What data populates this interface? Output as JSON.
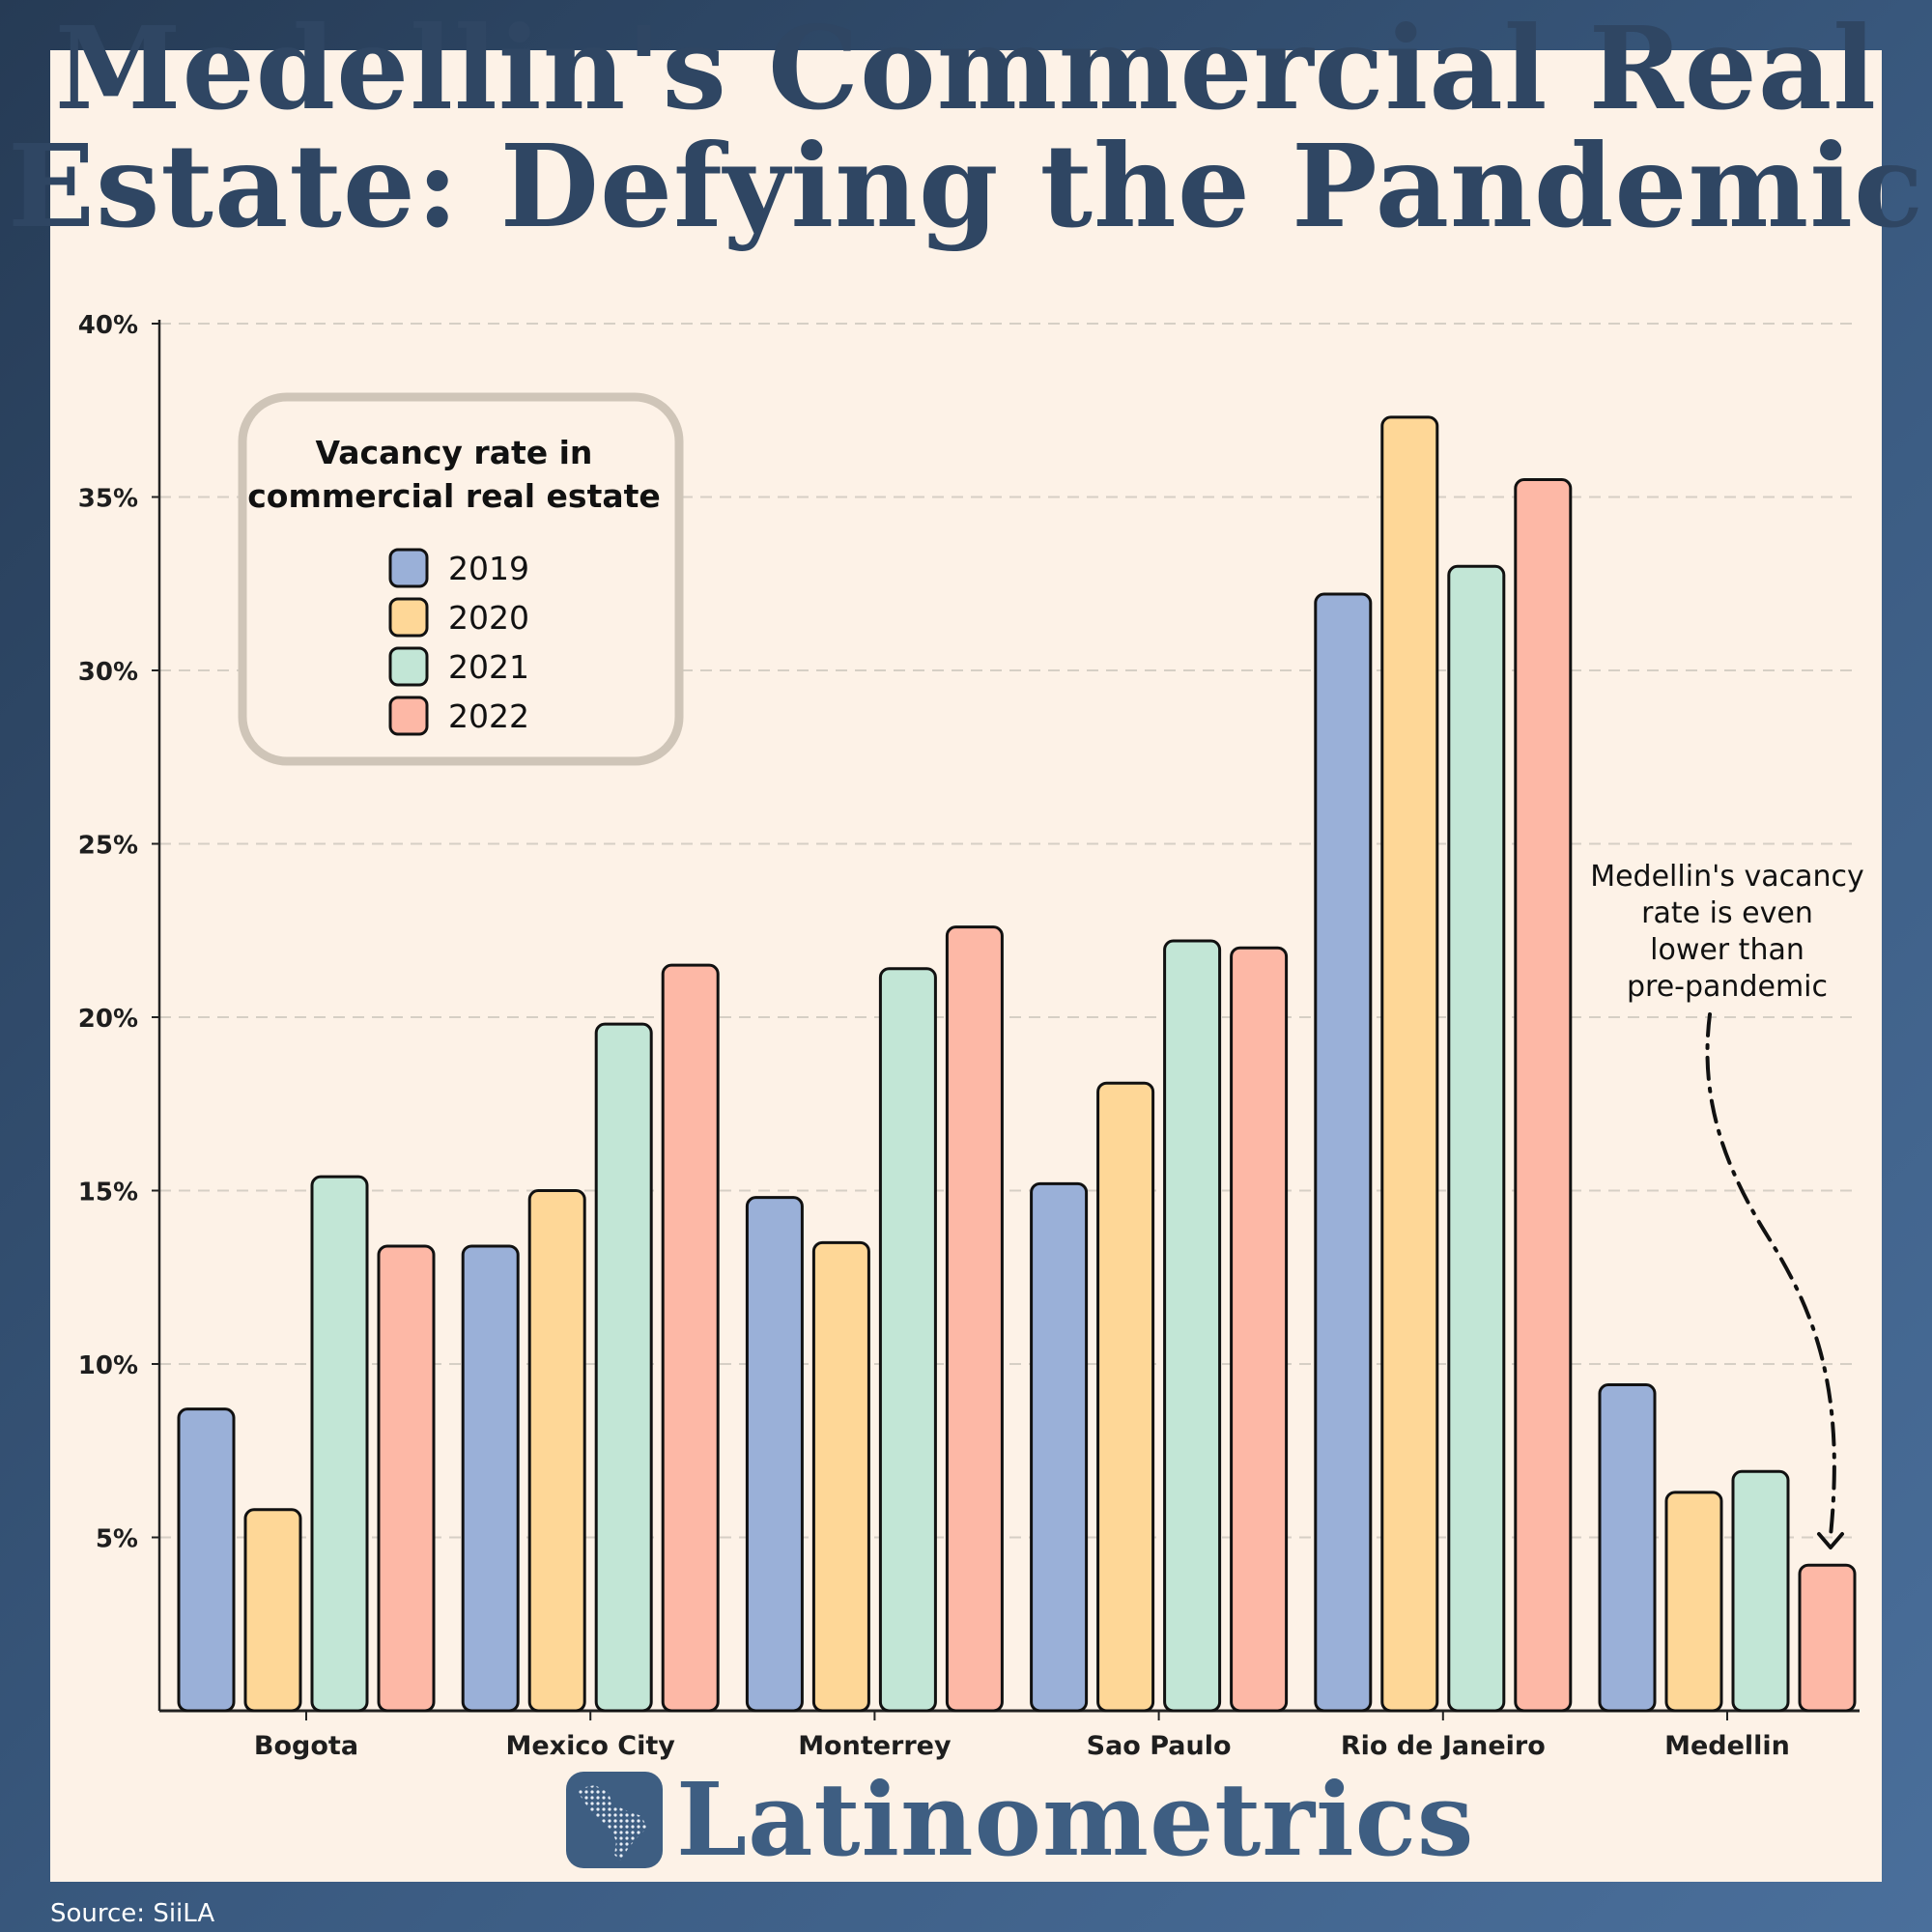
{
  "title_lines": [
    "Medellin's Commercial Real",
    "Estate: Defying the Pandemic"
  ],
  "source": "Source: SiiLA",
  "brand": "Latinometrics",
  "colors": {
    "2019": "#9ab0d8",
    "2020": "#fed797",
    "2021": "#c2e6d6",
    "2022": "#fdb8a6",
    "title": "#2f4663",
    "panel": "#fdf2e7"
  },
  "chart_data": {
    "type": "bar",
    "title": "",
    "xlabel": "",
    "ylabel": "",
    "ylim": [
      0,
      40
    ],
    "yticks": [
      5,
      10,
      15,
      20,
      25,
      30,
      35,
      40
    ],
    "ytick_labels": [
      "5%",
      "10%",
      "15%",
      "20%",
      "25%",
      "30%",
      "35%",
      "40%"
    ],
    "grid": "horizontal dashed",
    "categories": [
      "Bogota",
      "Mexico City",
      "Monterrey",
      "Sao Paulo",
      "Rio de Janeiro",
      "Medellin"
    ],
    "series": [
      {
        "name": "2019",
        "color": "#9ab0d8",
        "values": [
          8.7,
          13.4,
          14.8,
          15.2,
          32.2,
          9.4
        ]
      },
      {
        "name": "2020",
        "color": "#fed797",
        "values": [
          5.8,
          15.0,
          13.5,
          18.1,
          37.3,
          6.3
        ]
      },
      {
        "name": "2021",
        "color": "#c2e6d6",
        "values": [
          15.4,
          19.8,
          21.4,
          22.2,
          33.0,
          6.9
        ]
      },
      {
        "name": "2022",
        "color": "#fdb8a6",
        "values": [
          13.4,
          21.5,
          22.6,
          22.0,
          35.5,
          4.2
        ]
      }
    ],
    "legend": {
      "title_lines": [
        "Vacancy rate in",
        "commercial real estate"
      ],
      "placement": "top-left"
    },
    "annotation": {
      "lines": [
        "Medellin's vacancy",
        "rate is even",
        "lower than",
        "pre-pandemic"
      ],
      "target": "Medellin 2022"
    }
  }
}
